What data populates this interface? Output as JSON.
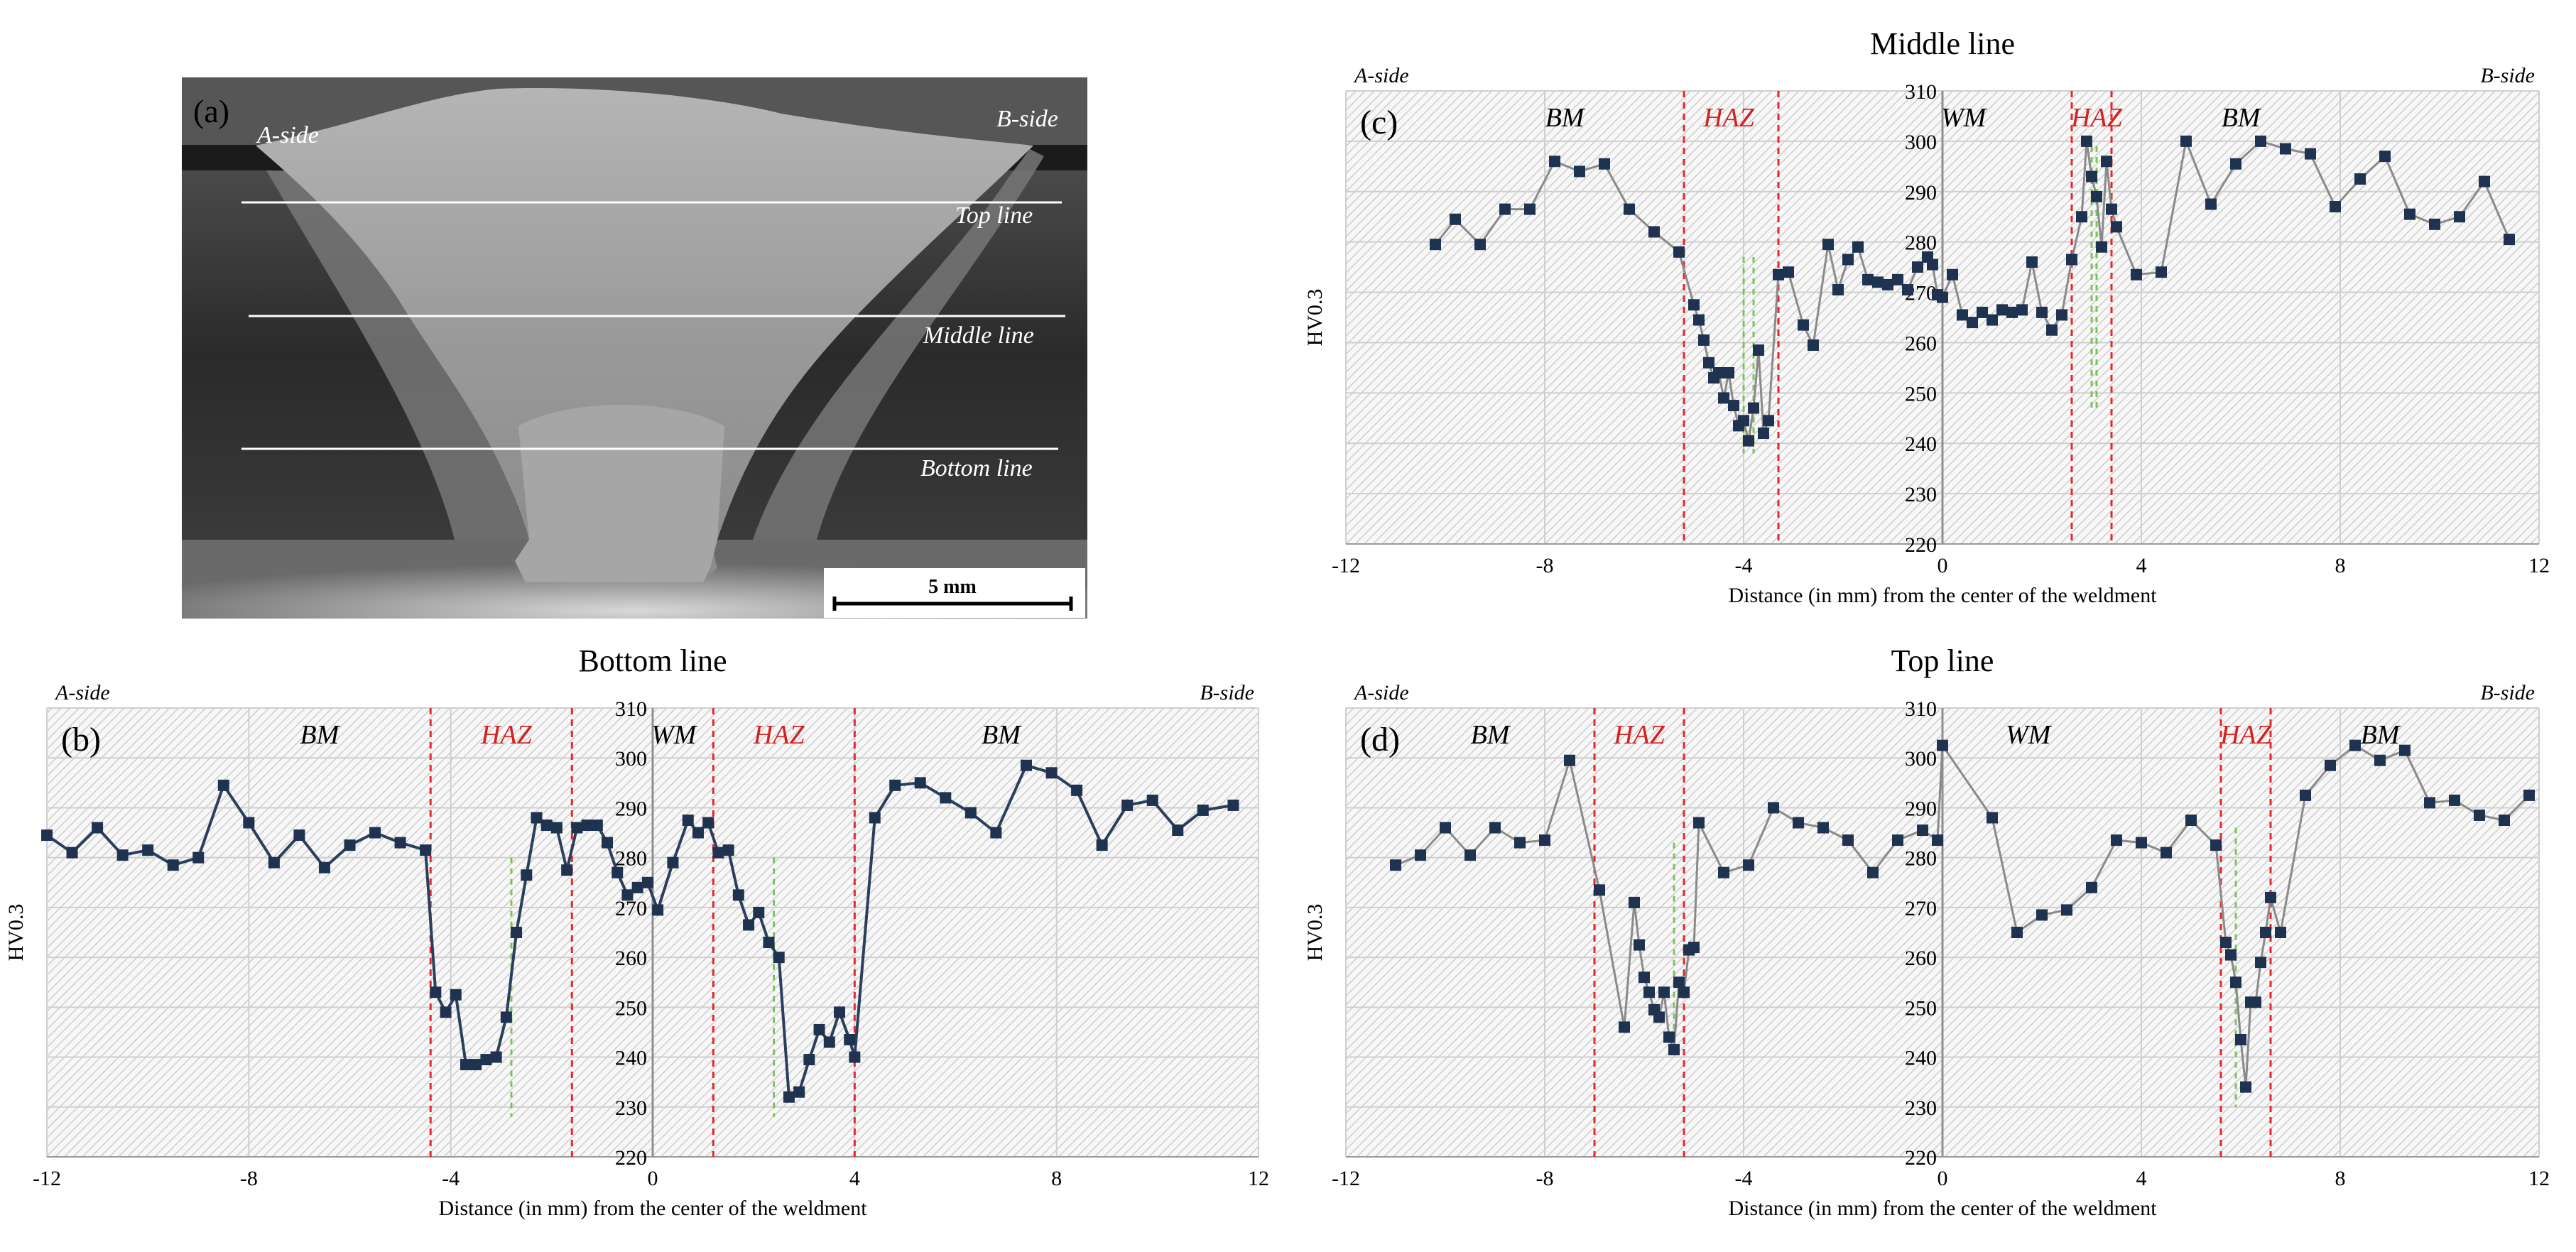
{
  "colors": {
    "marker": "#1f3350",
    "line_b": "#2b3f5c",
    "line_cd": "#8a8a8a",
    "boundary": "#e8262a",
    "green_dash": "#7cc35c",
    "haz_text": "#d42020",
    "grid": "#cfcfcf",
    "hatch": "#cdcdcd"
  },
  "micrograph": {
    "panel_label": "(a)",
    "a_side": "A-side",
    "b_side": "B-side",
    "top_line": "Top line",
    "middle_line": "Middle line",
    "bottom_line": "Bottom line",
    "scale_bar": "5 mm"
  },
  "chart_data": [
    {
      "id": "b",
      "type": "line",
      "title": "Bottom line",
      "panel_label": "(b)",
      "side_left": "A-side",
      "side_right": "B-side",
      "xlabel": "Distance (in mm) from the center of the weldment",
      "ylabel": "HV0.3",
      "xlim": [
        -12,
        12
      ],
      "ylim": [
        220,
        310
      ],
      "xticks": [
        -12,
        -8,
        -4,
        0,
        4,
        8,
        12
      ],
      "yticks": [
        220,
        230,
        240,
        250,
        260,
        270,
        280,
        290,
        300,
        310
      ],
      "zones": [
        {
          "text": "BM",
          "x": -6.6,
          "type": "bm"
        },
        {
          "text": "HAZ",
          "x": -2.9,
          "type": "haz"
        },
        {
          "text": "WM",
          "x": 0.0,
          "type": "wm"
        },
        {
          "text": "HAZ",
          "x": 2.5,
          "type": "haz"
        },
        {
          "text": "BM",
          "x": 6.9,
          "type": "bm"
        }
      ],
      "boundaries": [
        -4.4,
        -1.6,
        1.2,
        4.0
      ],
      "fusion_lines": [
        {
          "x": -2.8,
          "y": [
            228,
            280
          ]
        },
        {
          "x": 2.4,
          "y": [
            228,
            280
          ]
        }
      ],
      "points": [
        [
          -12.0,
          284.5
        ],
        [
          -11.5,
          281.0
        ],
        [
          -11.0,
          286.0
        ],
        [
          -10.5,
          280.5
        ],
        [
          -10.0,
          281.5
        ],
        [
          -9.5,
          278.5
        ],
        [
          -9.0,
          280.0
        ],
        [
          -8.5,
          294.5
        ],
        [
          -8.0,
          287.0
        ],
        [
          -7.5,
          279.0
        ],
        [
          -7.0,
          284.5
        ],
        [
          -6.5,
          278.0
        ],
        [
          -6.0,
          282.5
        ],
        [
          -5.5,
          285.0
        ],
        [
          -5.0,
          283.0
        ],
        [
          -4.5,
          281.5
        ],
        [
          -4.3,
          253.0
        ],
        [
          -4.1,
          249.0
        ],
        [
          -3.9,
          252.5
        ],
        [
          -3.7,
          238.5
        ],
        [
          -3.5,
          238.5
        ],
        [
          -3.3,
          239.5
        ],
        [
          -3.1,
          240.0
        ],
        [
          -2.9,
          248.0
        ],
        [
          -2.7,
          265.0
        ],
        [
          -2.5,
          276.5
        ],
        [
          -2.3,
          288.0
        ],
        [
          -2.1,
          286.5
        ],
        [
          -1.9,
          286.0
        ],
        [
          -1.7,
          277.5
        ],
        [
          -1.5,
          286.0
        ],
        [
          -1.3,
          286.5
        ],
        [
          -1.1,
          286.5
        ],
        [
          -0.9,
          283.0
        ],
        [
          -0.7,
          277.0
        ],
        [
          -0.5,
          272.5
        ],
        [
          -0.3,
          274.0
        ],
        [
          -0.1,
          275.0
        ],
        [
          0.1,
          269.5
        ],
        [
          0.4,
          279.0
        ],
        [
          0.7,
          287.5
        ],
        [
          0.9,
          285.0
        ],
        [
          1.1,
          287.0
        ],
        [
          1.3,
          281.0
        ],
        [
          1.5,
          281.5
        ],
        [
          1.7,
          272.5
        ],
        [
          1.9,
          266.5
        ],
        [
          2.1,
          269.0
        ],
        [
          2.3,
          263.0
        ],
        [
          2.5,
          260.0
        ],
        [
          2.7,
          232.0
        ],
        [
          2.9,
          233.0
        ],
        [
          3.1,
          239.5
        ],
        [
          3.3,
          245.5
        ],
        [
          3.5,
          243.0
        ],
        [
          3.7,
          249.0
        ],
        [
          3.9,
          243.5
        ],
        [
          4.0,
          240.0
        ],
        [
          4.4,
          288.0
        ],
        [
          4.8,
          294.5
        ],
        [
          5.3,
          295.0
        ],
        [
          5.8,
          292.0
        ],
        [
          6.3,
          289.0
        ],
        [
          6.8,
          285.0
        ],
        [
          7.4,
          298.5
        ],
        [
          7.9,
          297.0
        ],
        [
          8.4,
          293.5
        ],
        [
          8.9,
          282.5
        ],
        [
          9.4,
          290.5
        ],
        [
          9.9,
          291.5
        ],
        [
          10.4,
          285.5
        ],
        [
          10.9,
          289.5
        ],
        [
          11.5,
          290.5
        ]
      ]
    },
    {
      "id": "c",
      "type": "scatter",
      "title": "Middle line",
      "panel_label": "(c)",
      "side_left": "A-side",
      "side_right": "B-side",
      "xlabel": "Distance (in mm) from the center of the weldment",
      "ylabel": "HV0.3",
      "xlim": [
        -12,
        12
      ],
      "ylim": [
        220,
        310
      ],
      "xticks": [
        -12,
        -8,
        -4,
        0,
        4,
        8,
        12
      ],
      "yticks": [
        220,
        230,
        240,
        250,
        260,
        270,
        280,
        290,
        300,
        310
      ],
      "zones": [
        {
          "text": "BM",
          "x": -7.6,
          "type": "bm"
        },
        {
          "text": "HAZ",
          "x": -4.3,
          "type": "haz"
        },
        {
          "text": "WM",
          "x": 0.0,
          "type": "wm"
        },
        {
          "text": "HAZ",
          "x": 3.1,
          "type": "haz"
        },
        {
          "text": "BM",
          "x": 6.0,
          "type": "bm"
        }
      ],
      "boundaries": [
        -5.2,
        -3.3,
        2.6,
        3.4
      ],
      "fusion_lines": [
        {
          "x": -4.0,
          "y": [
            238,
            277
          ]
        },
        {
          "x": -3.8,
          "y": [
            238,
            277
          ]
        },
        {
          "x": 3.0,
          "y": [
            247,
            299
          ]
        },
        {
          "x": 3.1,
          "y": [
            247,
            299
          ]
        }
      ],
      "points": [
        [
          -10.2,
          279.5
        ],
        [
          -9.8,
          284.5
        ],
        [
          -9.3,
          279.5
        ],
        [
          -8.8,
          286.5
        ],
        [
          -8.3,
          286.5
        ],
        [
          -7.8,
          296.0
        ],
        [
          -7.3,
          294.0
        ],
        [
          -6.8,
          295.5
        ],
        [
          -6.3,
          286.5
        ],
        [
          -5.8,
          282.0
        ],
        [
          -5.3,
          278.0
        ],
        [
          -5.0,
          267.5
        ],
        [
          -4.9,
          264.5
        ],
        [
          -4.8,
          260.5
        ],
        [
          -4.7,
          256.0
        ],
        [
          -4.6,
          253.0
        ],
        [
          -4.5,
          254.0
        ],
        [
          -4.4,
          249.0
        ],
        [
          -4.3,
          254.0
        ],
        [
          -4.2,
          247.5
        ],
        [
          -4.1,
          243.5
        ],
        [
          -4.0,
          244.5
        ],
        [
          -3.9,
          240.5
        ],
        [
          -3.8,
          247.0
        ],
        [
          -3.7,
          258.5
        ],
        [
          -3.6,
          242.0
        ],
        [
          -3.5,
          244.5
        ],
        [
          -3.3,
          273.5
        ],
        [
          -3.1,
          274.0
        ],
        [
          -2.8,
          263.5
        ],
        [
          -2.6,
          259.5
        ],
        [
          -2.3,
          279.5
        ],
        [
          -2.1,
          270.5
        ],
        [
          -1.9,
          276.5
        ],
        [
          -1.7,
          279.0
        ],
        [
          -1.5,
          272.5
        ],
        [
          -1.3,
          272.0
        ],
        [
          -1.1,
          271.5
        ],
        [
          -0.9,
          272.5
        ],
        [
          -0.7,
          270.5
        ],
        [
          -0.5,
          275.0
        ],
        [
          -0.3,
          277.0
        ],
        [
          -0.2,
          275.5
        ],
        [
          -0.1,
          269.5
        ],
        [
          0.0,
          269.0
        ],
        [
          0.2,
          273.5
        ],
        [
          0.4,
          265.5
        ],
        [
          0.6,
          264.0
        ],
        [
          0.8,
          266.0
        ],
        [
          1.0,
          264.5
        ],
        [
          1.2,
          266.5
        ],
        [
          1.4,
          266.0
        ],
        [
          1.6,
          266.5
        ],
        [
          1.8,
          276.0
        ],
        [
          2.0,
          266.0
        ],
        [
          2.2,
          262.5
        ],
        [
          2.4,
          265.5
        ],
        [
          2.6,
          276.5
        ],
        [
          2.8,
          285.0
        ],
        [
          2.9,
          300.0
        ],
        [
          3.0,
          293.0
        ],
        [
          3.1,
          289.0
        ],
        [
          3.2,
          279.0
        ],
        [
          3.3,
          296.0
        ],
        [
          3.4,
          286.5
        ],
        [
          3.5,
          283.0
        ],
        [
          3.9,
          273.5
        ],
        [
          4.4,
          274.0
        ],
        [
          4.9,
          300.0
        ],
        [
          5.4,
          287.5
        ],
        [
          5.9,
          295.5
        ],
        [
          6.4,
          300.0
        ],
        [
          6.9,
          298.5
        ],
        [
          7.4,
          297.5
        ],
        [
          7.9,
          287.0
        ],
        [
          8.4,
          292.5
        ],
        [
          8.9,
          297.0
        ],
        [
          9.4,
          285.5
        ],
        [
          9.9,
          283.5
        ],
        [
          10.4,
          285.0
        ],
        [
          10.9,
          292.0
        ],
        [
          11.4,
          280.5
        ]
      ]
    },
    {
      "id": "d",
      "type": "scatter",
      "title": "Top line",
      "panel_label": "(d)",
      "side_left": "A-side",
      "side_right": "B-side",
      "xlabel": "Distance (in mm) from the center of the weldment",
      "ylabel": "HV0.3",
      "xlim": [
        -12,
        12
      ],
      "ylim": [
        220,
        310
      ],
      "xticks": [
        -12,
        -8,
        -4,
        0,
        4,
        8,
        12
      ],
      "yticks": [
        220,
        230,
        240,
        250,
        260,
        270,
        280,
        290,
        300,
        310
      ],
      "zones": [
        {
          "text": "BM",
          "x": -9.1,
          "type": "bm"
        },
        {
          "text": "HAZ",
          "x": -6.1,
          "type": "haz"
        },
        {
          "text": "WM",
          "x": 1.3,
          "type": "wm"
        },
        {
          "text": "HAZ",
          "x": 6.1,
          "type": "haz"
        },
        {
          "text": "BM",
          "x": 8.8,
          "type": "bm"
        }
      ],
      "boundaries": [
        -7.0,
        -5.2,
        5.6,
        6.6
      ],
      "fusion_lines": [
        {
          "x": -5.4,
          "y": [
            245,
            283
          ]
        },
        {
          "x": 5.9,
          "y": [
            230,
            286
          ]
        }
      ],
      "points": [
        [
          -11.0,
          278.5
        ],
        [
          -10.5,
          280.5
        ],
        [
          -10.0,
          286.0
        ],
        [
          -9.5,
          280.5
        ],
        [
          -9.0,
          286.0
        ],
        [
          -8.5,
          283.0
        ],
        [
          -8.0,
          283.5
        ],
        [
          -7.5,
          299.5
        ],
        [
          -6.9,
          273.5
        ],
        [
          -6.4,
          246.0
        ],
        [
          -6.2,
          271.0
        ],
        [
          -6.1,
          262.5
        ],
        [
          -6.0,
          256.0
        ],
        [
          -5.9,
          253.0
        ],
        [
          -5.8,
          249.5
        ],
        [
          -5.7,
          248.0
        ],
        [
          -5.6,
          253.0
        ],
        [
          -5.5,
          244.0
        ],
        [
          -5.4,
          241.5
        ],
        [
          -5.3,
          255.0
        ],
        [
          -5.2,
          253.0
        ],
        [
          -5.1,
          261.5
        ],
        [
          -5.0,
          262.0
        ],
        [
          -4.9,
          287.0
        ],
        [
          -4.4,
          277.0
        ],
        [
          -3.9,
          278.5
        ],
        [
          -3.4,
          290.0
        ],
        [
          -2.9,
          287.0
        ],
        [
          -2.4,
          286.0
        ],
        [
          -1.9,
          283.5
        ],
        [
          -1.4,
          277.0
        ],
        [
          -0.9,
          283.5
        ],
        [
          -0.4,
          285.5
        ],
        [
          -0.1,
          283.5
        ],
        [
          0.0,
          302.5
        ],
        [
          1.0,
          288.0
        ],
        [
          1.5,
          265.0
        ],
        [
          2.0,
          268.5
        ],
        [
          2.5,
          269.5
        ],
        [
          3.0,
          274.0
        ],
        [
          3.5,
          283.5
        ],
        [
          4.0,
          283.0
        ],
        [
          4.5,
          281.0
        ],
        [
          5.0,
          287.5
        ],
        [
          5.5,
          282.5
        ],
        [
          5.7,
          263.0
        ],
        [
          5.8,
          260.5
        ],
        [
          5.9,
          255.0
        ],
        [
          6.0,
          243.5
        ],
        [
          6.1,
          234.0
        ],
        [
          6.2,
          251.0
        ],
        [
          6.3,
          251.0
        ],
        [
          6.4,
          259.0
        ],
        [
          6.5,
          265.0
        ],
        [
          6.6,
          272.0
        ],
        [
          6.8,
          265.0
        ],
        [
          7.3,
          292.5
        ],
        [
          7.8,
          298.5
        ],
        [
          8.3,
          302.5
        ],
        [
          8.8,
          299.5
        ],
        [
          9.3,
          301.5
        ],
        [
          9.8,
          291.0
        ],
        [
          10.3,
          291.5
        ],
        [
          10.8,
          288.5
        ],
        [
          11.3,
          287.5
        ],
        [
          11.8,
          292.5
        ]
      ]
    }
  ]
}
